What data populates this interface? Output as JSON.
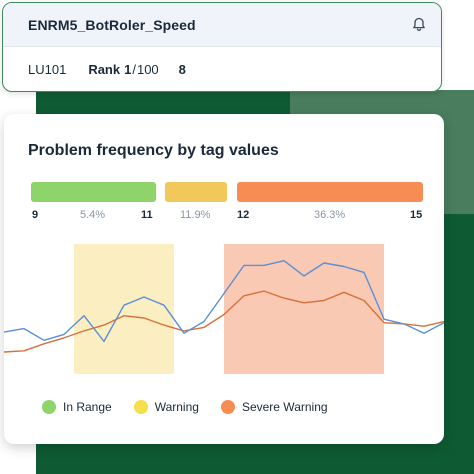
{
  "header": {
    "title": "ENRM5_BotRoler_Speed",
    "lu_label": "LU101",
    "rank_label": "Rank",
    "rank_value": "1",
    "rank_sep": "/",
    "rank_total": "100",
    "count": "8"
  },
  "card": {
    "title": "Problem frequency by tag values"
  },
  "ranges": [
    {
      "name": "In Range",
      "min": "9",
      "max": "11",
      "pct": "5.4%",
      "color": "#8fd46a"
    },
    {
      "name": "Warning",
      "min": "",
      "max": "",
      "pct": "11.9%",
      "color": "#f0c95a"
    },
    {
      "name": "Severe Warning",
      "min": "12",
      "max": "15",
      "pct": "36.3%",
      "color": "#f58d55"
    }
  ],
  "legend": {
    "in_range": "In Range",
    "warning": "Warning",
    "severe": "Severe Warning"
  },
  "colors": {
    "brand_dark": "#0e5b33",
    "brand_light": "#4a7c5e",
    "line_blue": "#5b8fd6",
    "line_orange": "#d9703a",
    "warning_fill": "#fbefc2",
    "severe_fill": "#f9c9b4"
  },
  "chart_data": {
    "type": "line",
    "xlim": [
      0,
      22
    ],
    "ylim": [
      0,
      10
    ],
    "bands": [
      {
        "name": "Warning",
        "from": 3.5,
        "to": 8.5
      },
      {
        "name": "Severe Warning",
        "from": 11,
        "to": 19
      }
    ],
    "series": [
      {
        "values": [
          [
            0,
            1.2
          ],
          [
            1,
            1.3
          ],
          [
            2,
            1.9
          ],
          [
            3,
            2.4
          ],
          [
            4,
            3.0
          ],
          [
            5,
            3.5
          ],
          [
            6,
            4.3
          ],
          [
            7,
            4.1
          ],
          [
            8,
            3.5
          ],
          [
            9,
            3.0
          ],
          [
            10,
            3.3
          ],
          [
            11,
            4.4
          ],
          [
            12,
            6.0
          ],
          [
            13,
            6.4
          ],
          [
            14,
            5.8
          ],
          [
            15,
            5.4
          ],
          [
            16,
            5.6
          ],
          [
            17,
            6.3
          ],
          [
            18,
            5.6
          ],
          [
            19,
            3.7
          ],
          [
            20,
            3.6
          ],
          [
            21,
            3.4
          ],
          [
            22,
            3.8
          ]
        ]
      },
      {
        "values": [
          [
            0,
            2.9
          ],
          [
            1,
            3.2
          ],
          [
            2,
            2.2
          ],
          [
            3,
            2.7
          ],
          [
            4,
            4.3
          ],
          [
            5,
            2.1
          ],
          [
            6,
            5.2
          ],
          [
            7,
            5.9
          ],
          [
            8,
            5.2
          ],
          [
            9,
            2.8
          ],
          [
            10,
            3.8
          ],
          [
            11,
            6.2
          ],
          [
            12,
            8.6
          ],
          [
            13,
            8.6
          ],
          [
            14,
            9.0
          ],
          [
            15,
            7.7
          ],
          [
            16,
            8.8
          ],
          [
            17,
            8.5
          ],
          [
            18,
            8.0
          ],
          [
            19,
            4.0
          ],
          [
            20,
            3.6
          ],
          [
            21,
            2.8
          ],
          [
            22,
            3.7
          ]
        ]
      }
    ]
  }
}
